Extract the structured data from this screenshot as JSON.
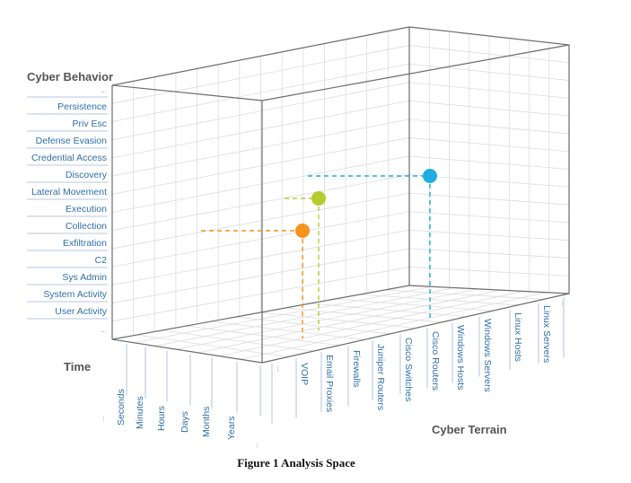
{
  "figure": {
    "caption": "Figure 1 Analysis Space"
  },
  "axes": {
    "behavior_title": "Cyber Behavior",
    "time_title": "Time",
    "terrain_title": "Cyber Terrain",
    "behavior_labels": [
      "...",
      "Persistence",
      "Priv Esc",
      "Defense Evasion",
      "Credential Access",
      "Discovery",
      "Lateral Movement",
      "Execution",
      "Collection",
      "Exfiltration",
      "C2",
      "Sys Admin",
      "System Activity",
      "User Activity",
      "..."
    ],
    "terrain_labels": [
      "...",
      "VOIP",
      "Email Proxies",
      "Firewalls",
      "Juniper Routers",
      "Cisco Switches",
      "Cisco Routers",
      "Windows Hosts",
      "Windows Servers",
      "Linux Hosts",
      "Linux Servers",
      "..."
    ],
    "time_labels": [
      "...",
      "Seconds",
      "Minutes",
      "Hours",
      "Days",
      "Months",
      "Years",
      "..."
    ]
  },
  "points": [
    {
      "color": "#f7931e",
      "behavior": "Exfiltration-Collection",
      "terrain": "VOIP"
    },
    {
      "color": "#b5cc2e",
      "behavior": "Lateral Movement",
      "terrain": "Email Proxies"
    },
    {
      "color": "#1eaee0",
      "behavior": "Discovery",
      "terrain": "Cisco Routers"
    }
  ]
}
